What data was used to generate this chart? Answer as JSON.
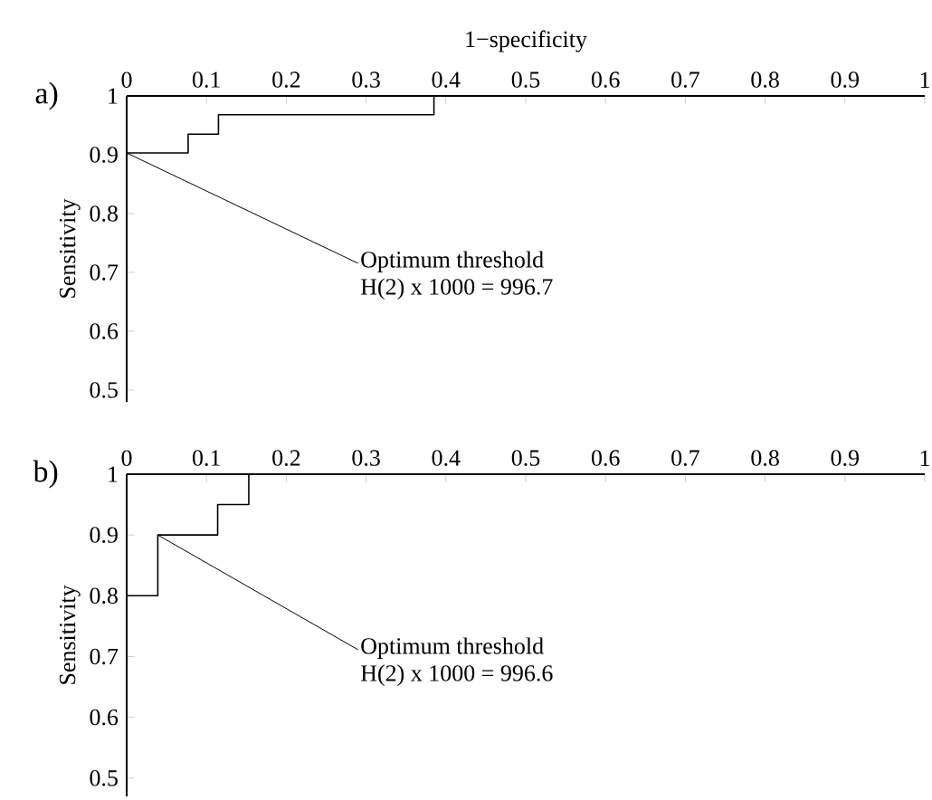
{
  "chart_data": [
    {
      "type": "step",
      "xlabel": "1−specificity",
      "ylabel": "Sensitivity",
      "x": [
        0,
        0.077,
        0.115,
        0.385,
        1
      ],
      "values": [
        0.903,
        0.935,
        0.968,
        1,
        1
      ],
      "color": "#000000",
      "xlim": [
        0,
        1
      ],
      "ylim": [
        0.48,
        1
      ],
      "xticks": [
        0,
        0.1,
        0.2,
        0.3,
        0.4,
        0.5,
        0.6,
        0.7,
        0.8,
        0.9,
        1
      ],
      "yticks": [
        0.5,
        0.6,
        0.7,
        0.8,
        0.9,
        1
      ],
      "annotations": [
        "a)",
        {
          "text": "Optimum threshold",
          "x": 0,
          "y": 0.903
        },
        "H(2) x 1000 = 996.7"
      ]
    },
    {
      "type": "step",
      "ylabel": "Sensitivity",
      "x": [
        0,
        0.039,
        0.114,
        0.153,
        1
      ],
      "values": [
        0.8,
        0.9,
        0.95,
        1,
        1
      ],
      "color": "#000000",
      "xlim": [
        0,
        1
      ],
      "ylim": [
        0.47,
        1
      ],
      "xticks": [
        0,
        0.1,
        0.2,
        0.3,
        0.4,
        0.5,
        0.6,
        0.7,
        0.8,
        0.9,
        1
      ],
      "yticks": [
        0.5,
        0.6,
        0.7,
        0.8,
        0.9,
        1
      ],
      "annotations": [
        "b)",
        {
          "text": "Optimum threshold",
          "x": 0.039,
          "y": 0.9
        },
        "H(2) x 1000 = 996.6"
      ]
    }
  ]
}
